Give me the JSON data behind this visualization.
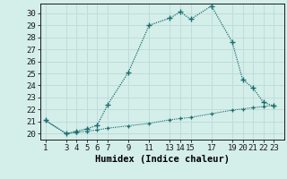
{
  "title": "",
  "xlabel": "Humidex (Indice chaleur)",
  "bg_color": "#d4eeea",
  "grid_color": "#c0dcda",
  "line_color": "#1a6e6e",
  "ylim": [
    19.5,
    30.8
  ],
  "xlim": [
    0.5,
    24
  ],
  "yticks": [
    20,
    21,
    22,
    23,
    24,
    25,
    26,
    27,
    28,
    29,
    30
  ],
  "xticks": [
    1,
    3,
    4,
    5,
    6,
    7,
    9,
    11,
    13,
    14,
    15,
    17,
    19,
    20,
    21,
    22,
    23
  ],
  "upper_x": [
    1,
    3,
    4,
    5,
    6,
    7,
    9,
    11,
    13,
    14,
    15,
    17,
    19,
    20,
    21,
    22,
    23
  ],
  "upper_y": [
    21.1,
    20.0,
    20.2,
    20.4,
    20.7,
    22.4,
    25.1,
    29.0,
    29.6,
    30.1,
    29.5,
    30.6,
    27.6,
    24.5,
    23.8,
    22.6,
    22.3
  ],
  "lower_x": [
    1,
    3,
    4,
    5,
    6,
    7,
    9,
    11,
    13,
    14,
    15,
    17,
    19,
    20,
    21,
    22,
    23
  ],
  "lower_y": [
    21.1,
    20.0,
    20.1,
    20.2,
    20.3,
    20.45,
    20.65,
    20.85,
    21.15,
    21.25,
    21.35,
    21.65,
    21.95,
    22.05,
    22.15,
    22.25,
    22.35
  ]
}
